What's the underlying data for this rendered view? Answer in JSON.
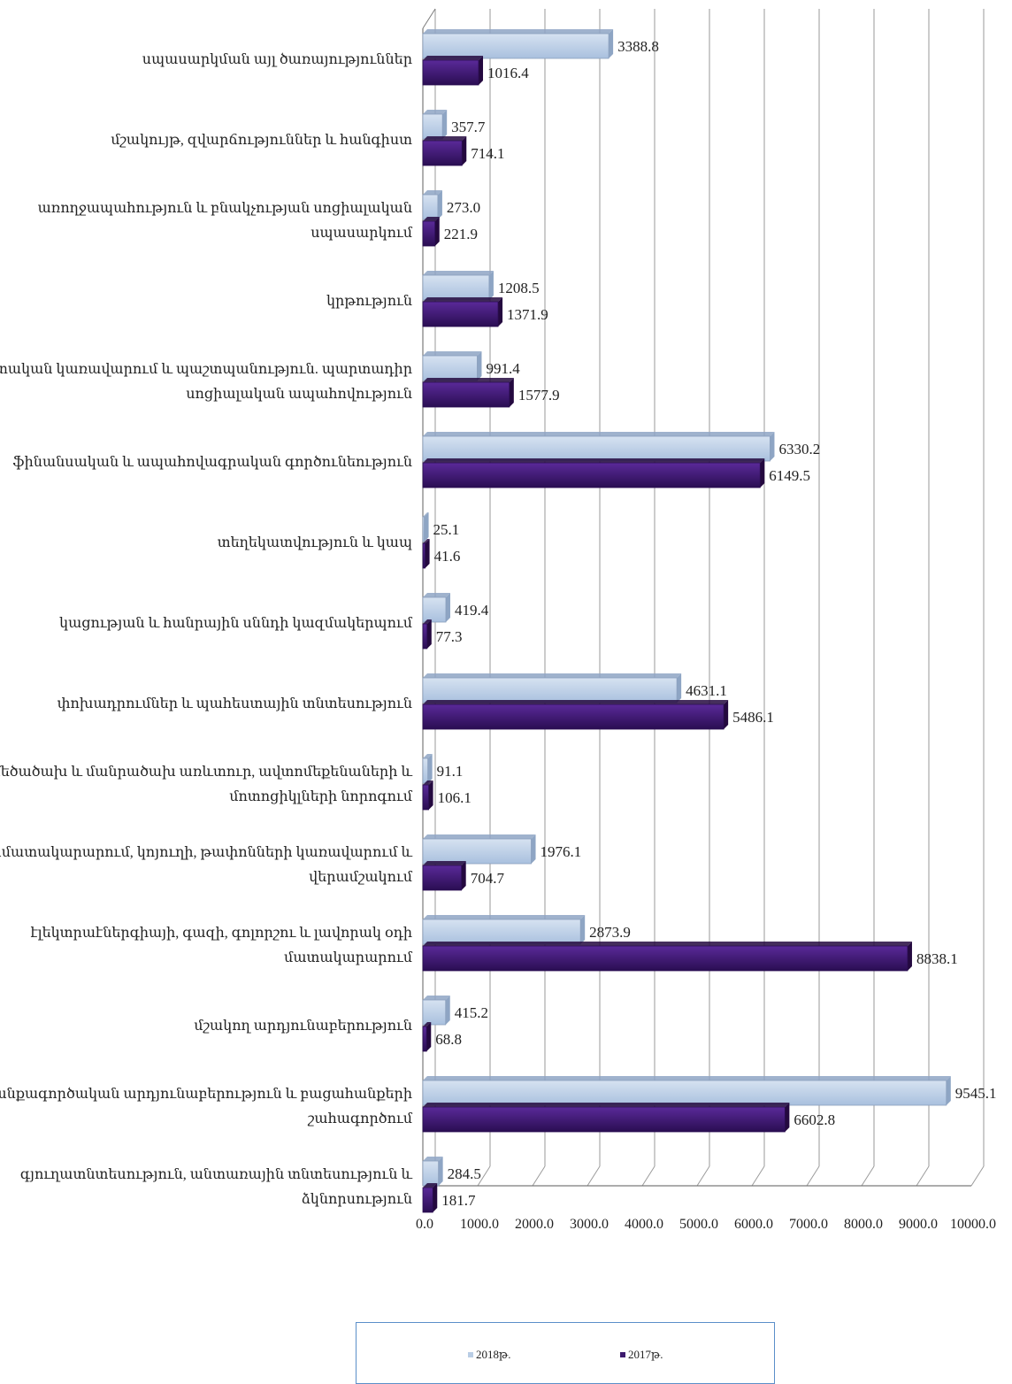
{
  "chart_data": {
    "type": "bar",
    "orientation": "horizontal",
    "xlim": [
      0,
      10000
    ],
    "x_ticks": [
      "0.0",
      "1000.0",
      "2000.0",
      "3000.0",
      "4000.0",
      "5000.0",
      "6000.0",
      "7000.0",
      "8000.0",
      "9000.0",
      "10000.0"
    ],
    "grid": true,
    "legend_position": "bottom",
    "categories": [
      [
        "սպասարկման այլ ծառայություններ"
      ],
      [
        "մշակույթ, զվարճություններ և հանգիստ"
      ],
      [
        "առողջապահություն և բնակչության սոցիալական",
        "սպասարկում"
      ],
      [
        "կրթություն"
      ],
      [
        "պետական կառավարում և պաշտպանություն. պարտադիր",
        "սոցիալական ապահովություն"
      ],
      [
        "ֆինանսական և ապահովագրական գործունեություն"
      ],
      [
        "տեղեկատվություն և կապ"
      ],
      [
        "կացության և հանրային սննդի կազմակերպում"
      ],
      [
        "փոխադրումներ և պահեստային տնտեսություն"
      ],
      [
        "մեծածախ և մանրածախ առևտուր, ավտոմեքենաների և",
        "մոտոցիկլների նորոգում"
      ],
      [
        "ջրամատակարարում, կոյուղի, թափոնների կառավարում և",
        "վերամշակում"
      ],
      [
        "էլեկտրաէներգիայի, գազի, գոլորշու և լավորակ օդի",
        "մատակարարում"
      ],
      [
        "մշակող արդյունաբերություն"
      ],
      [
        "հանքագործական արդյունաբերություն և բացահանքերի",
        "շահագործում"
      ],
      [
        "գյուղատնտեսություն, անտառային տնտեսություն և",
        "ձկնորսություն"
      ]
    ],
    "series": [
      {
        "name": "2018թ.",
        "color": "#b9cde5",
        "values": [
          3388.8,
          357.7,
          273.0,
          1208.5,
          991.4,
          6330.2,
          25.1,
          419.4,
          4631.1,
          91.1,
          1976.1,
          2873.9,
          415.2,
          9545.1,
          284.5
        ],
        "labels": [
          "3388.8",
          "357.7",
          "273.0",
          "1208.5",
          "991.4",
          "6330.2",
          "25.1",
          "419.4",
          "4631.1",
          "91.1",
          "1976.1",
          "2873.9",
          "415.2",
          "9545.1",
          "284.5"
        ]
      },
      {
        "name": "2017թ.",
        "color": "#3d1a6e",
        "values": [
          1016.4,
          714.1,
          221.9,
          1371.9,
          1577.9,
          6149.5,
          41.6,
          77.3,
          5486.1,
          106.1,
          704.7,
          8838.1,
          68.8,
          6602.8,
          181.7
        ],
        "labels": [
          "1016.4",
          "714.1",
          "221.9",
          "1371.9",
          "1577.9",
          "6149.5",
          "41.6",
          "77.3",
          "5486.1",
          "106.1",
          "704.7",
          "8838.1",
          "68.8",
          "6602.8",
          "181.7"
        ]
      }
    ]
  }
}
